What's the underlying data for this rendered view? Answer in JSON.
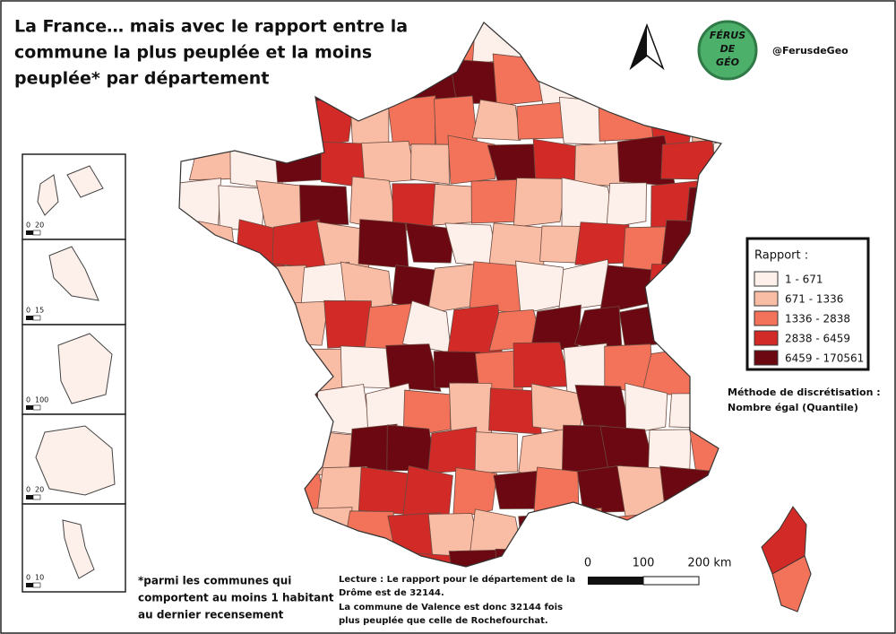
{
  "header": {
    "title_lines": [
      "La France… mais avec le rapport entre la",
      "commune la plus peuplée et la moins",
      "peuplée* par département"
    ],
    "logo_lines": [
      "FÉRUS",
      "DE",
      "GÉO"
    ],
    "handle": "@FerusdeGeo"
  },
  "legend": {
    "title": "Rapport :",
    "items": [
      {
        "label": "1 - 671",
        "color": "#fdf0ea"
      },
      {
        "label": "671 - 1336",
        "color": "#f9bda5"
      },
      {
        "label": "1336 - 2838",
        "color": "#f2735a"
      },
      {
        "label": "2838 - 6459",
        "color": "#d12a27"
      },
      {
        "label": "6459 - 170561",
        "color": "#6b0811"
      }
    ]
  },
  "method_lines": [
    "Méthode de discrétisation :",
    "Nombre égal (Quantile)"
  ],
  "footnote_lines": [
    "*parmi les communes qui",
    "comportent au moins 1 habitant",
    "au dernier recensement"
  ],
  "reading_lines": [
    "Lecture : Le rapport pour le département de la",
    "Drôme est de 32144.",
    "La commune de Valence est donc 32144 fois",
    "plus peuplée que celle de Rochefourchat."
  ],
  "scale_bar": {
    "labels": [
      "0",
      "100",
      "200 km"
    ]
  },
  "insets": [
    {
      "scale": [
        "0",
        "20"
      ]
    },
    {
      "scale": [
        "0",
        "15"
      ]
    },
    {
      "scale": [
        "0",
        "100"
      ]
    },
    {
      "scale": [
        "0",
        "20"
      ]
    },
    {
      "scale": [
        "0",
        "10"
      ]
    }
  ]
}
